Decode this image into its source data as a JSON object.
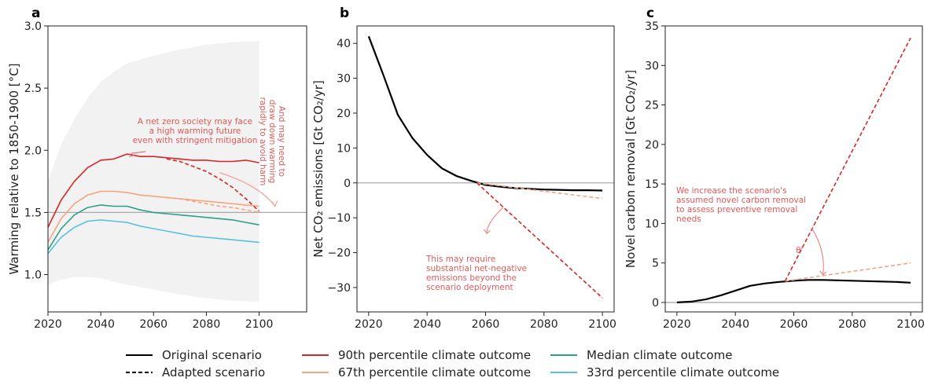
{
  "colors": {
    "original": "#000000",
    "p90": "#d62728",
    "p67": "#f4a582",
    "median": "#2ca089",
    "p33": "#5bc0de",
    "annotation": "#e05a5a",
    "band": "#f2f2f2",
    "refline": "#aaaaaa"
  },
  "chart_data": [
    {
      "panel": "a",
      "type": "line",
      "xlabel": "",
      "ylabel": "Warming relative to 1850-1900 [°C]",
      "xlim": [
        2020,
        2118
      ],
      "ylim": [
        0.7,
        3.0
      ],
      "xticks": [
        2020,
        2040,
        2060,
        2080,
        2100
      ],
      "yticks": [
        1.0,
        1.5,
        2.0,
        2.5,
        3.0
      ],
      "ytick_labels": [
        "1.0",
        "1.5",
        "2.0",
        "2.5",
        "3.0"
      ],
      "reference_line": 1.5,
      "band": {
        "x": [
          2020,
          2025,
          2030,
          2035,
          2040,
          2045,
          2050,
          2060,
          2070,
          2080,
          2090,
          2100
        ],
        "upper": [
          1.75,
          2.05,
          2.25,
          2.42,
          2.55,
          2.63,
          2.7,
          2.76,
          2.81,
          2.85,
          2.87,
          2.88
        ],
        "lower": [
          0.92,
          0.96,
          0.98,
          0.98,
          0.97,
          0.94,
          0.92,
          0.88,
          0.84,
          0.81,
          0.79,
          0.78
        ]
      },
      "series": [
        {
          "key": "p90",
          "style": "solid",
          "x": [
            2020,
            2025,
            2030,
            2035,
            2040,
            2045,
            2050,
            2055,
            2060,
            2065,
            2070,
            2075,
            2080,
            2085,
            2090,
            2095,
            2100
          ],
          "y": [
            1.38,
            1.6,
            1.75,
            1.86,
            1.92,
            1.93,
            1.97,
            1.95,
            1.95,
            1.94,
            1.93,
            1.92,
            1.92,
            1.91,
            1.91,
            1.92,
            1.9
          ]
        },
        {
          "key": "p67",
          "style": "solid",
          "x": [
            2020,
            2025,
            2030,
            2035,
            2040,
            2045,
            2050,
            2055,
            2060,
            2065,
            2070,
            2075,
            2080,
            2085,
            2090,
            2095,
            2100
          ],
          "y": [
            1.26,
            1.45,
            1.57,
            1.64,
            1.67,
            1.67,
            1.66,
            1.64,
            1.63,
            1.62,
            1.61,
            1.6,
            1.59,
            1.58,
            1.57,
            1.56,
            1.55
          ]
        },
        {
          "key": "median",
          "style": "solid",
          "x": [
            2020,
            2025,
            2030,
            2035,
            2040,
            2045,
            2050,
            2055,
            2060,
            2065,
            2070,
            2075,
            2080,
            2085,
            2090,
            2095,
            2100
          ],
          "y": [
            1.2,
            1.37,
            1.48,
            1.54,
            1.56,
            1.55,
            1.55,
            1.52,
            1.5,
            1.49,
            1.48,
            1.47,
            1.46,
            1.45,
            1.44,
            1.42,
            1.4
          ]
        },
        {
          "key": "p33",
          "style": "solid",
          "x": [
            2020,
            2025,
            2030,
            2035,
            2040,
            2045,
            2050,
            2055,
            2060,
            2065,
            2070,
            2075,
            2080,
            2085,
            2090,
            2095,
            2100
          ],
          "y": [
            1.17,
            1.3,
            1.38,
            1.43,
            1.44,
            1.43,
            1.42,
            1.39,
            1.37,
            1.35,
            1.33,
            1.31,
            1.3,
            1.29,
            1.28,
            1.27,
            1.26
          ]
        },
        {
          "key": "p90",
          "style": "dashed",
          "x": [
            2065,
            2070,
            2075,
            2080,
            2085,
            2090,
            2095,
            2100
          ],
          "y": [
            1.93,
            1.91,
            1.87,
            1.83,
            1.77,
            1.7,
            1.61,
            1.51
          ]
        },
        {
          "key": "p67",
          "style": "dashed",
          "x": [
            2065,
            2070,
            2075,
            2080,
            2085,
            2090,
            2095,
            2100
          ],
          "y": [
            1.62,
            1.61,
            1.59,
            1.57,
            1.55,
            1.54,
            1.52,
            1.5
          ]
        }
      ],
      "annotations": [
        "A net zero society may face",
        "a high warming future",
        "even with stringent mitigation",
        "And may need to",
        "draw down warming",
        "rapidly to avoid harm"
      ]
    },
    {
      "panel": "b",
      "type": "line",
      "xlabel": "",
      "ylabel": "Net CO₂ emissions [Gt CO₂/yr]",
      "xlim": [
        2016,
        2104
      ],
      "ylim": [
        -37,
        45
      ],
      "xticks": [
        2020,
        2040,
        2060,
        2080,
        2100
      ],
      "yticks": [
        -30,
        -20,
        -10,
        0,
        10,
        20,
        30,
        40
      ],
      "ytick_labels": [
        "−30",
        "−20",
        "−10",
        "0",
        "10",
        "20",
        "30",
        "40"
      ],
      "reference_line": 0,
      "series": [
        {
          "key": "original",
          "style": "solid",
          "x": [
            2020,
            2025,
            2030,
            2035,
            2040,
            2045,
            2050,
            2055,
            2060,
            2065,
            2070,
            2075,
            2080,
            2085,
            2090,
            2095,
            2100
          ],
          "y": [
            42,
            31,
            19.5,
            12.8,
            8,
            4.2,
            2,
            0.6,
            -0.6,
            -1.1,
            -1.5,
            -1.7,
            -1.9,
            -2.0,
            -2.1,
            -2.1,
            -2.2
          ]
        },
        {
          "key": "p67",
          "style": "dashed",
          "x": [
            2057,
            2100
          ],
          "y": [
            0,
            -4.5
          ]
        },
        {
          "key": "p90",
          "style": "dashed",
          "x": [
            2057,
            2100
          ],
          "y": [
            0,
            -33
          ]
        }
      ],
      "annotations": [
        "This may require",
        "substantial net-negative",
        "emissions beyond the",
        "scenario deployment"
      ]
    },
    {
      "panel": "c",
      "type": "line",
      "xlabel": "",
      "ylabel": "Novel carbon removal [Gt CO₂/yr]",
      "xlim": [
        2016,
        2104
      ],
      "ylim": [
        -1.2,
        35
      ],
      "xticks": [
        2020,
        2040,
        2060,
        2080,
        2100
      ],
      "yticks": [
        0,
        5,
        10,
        15,
        20,
        25,
        30,
        35
      ],
      "ytick_labels": [
        "0",
        "5",
        "10",
        "15",
        "20",
        "25",
        "30",
        "35"
      ],
      "reference_line": 0,
      "series": [
        {
          "key": "original",
          "style": "solid",
          "x": [
            2020,
            2025,
            2030,
            2035,
            2040,
            2045,
            2050,
            2055,
            2060,
            2065,
            2070,
            2075,
            2080,
            2085,
            2090,
            2095,
            2100
          ],
          "y": [
            0,
            0.1,
            0.4,
            0.9,
            1.5,
            2.1,
            2.4,
            2.6,
            2.75,
            2.85,
            2.85,
            2.8,
            2.75,
            2.7,
            2.65,
            2.6,
            2.5
          ]
        },
        {
          "key": "p67",
          "style": "dashed",
          "x": [
            2057,
            2100
          ],
          "y": [
            2.7,
            5.0
          ]
        },
        {
          "key": "p90",
          "style": "dashed",
          "x": [
            2057,
            2100
          ],
          "y": [
            2.7,
            33.5
          ]
        }
      ],
      "annotations": [
        "We increase the scenario's",
        "assumed novel carbon removal",
        "to assess preventive removal",
        "needs",
        "θ'"
      ]
    }
  ],
  "legend": [
    {
      "label": "Original scenario",
      "color_key": "original",
      "style": "solid"
    },
    {
      "label": "Adapted scenario",
      "color_key": "original",
      "style": "dashed"
    },
    {
      "label": "90th percentile climate outcome",
      "color_key": "p90",
      "style": "solid"
    },
    {
      "label": "67th percentile climate outcome",
      "color_key": "p67",
      "style": "solid"
    },
    {
      "label": "Median climate outcome",
      "color_key": "median",
      "style": "solid"
    },
    {
      "label": "33rd percentile climate outcome",
      "color_key": "p33",
      "style": "solid"
    }
  ]
}
